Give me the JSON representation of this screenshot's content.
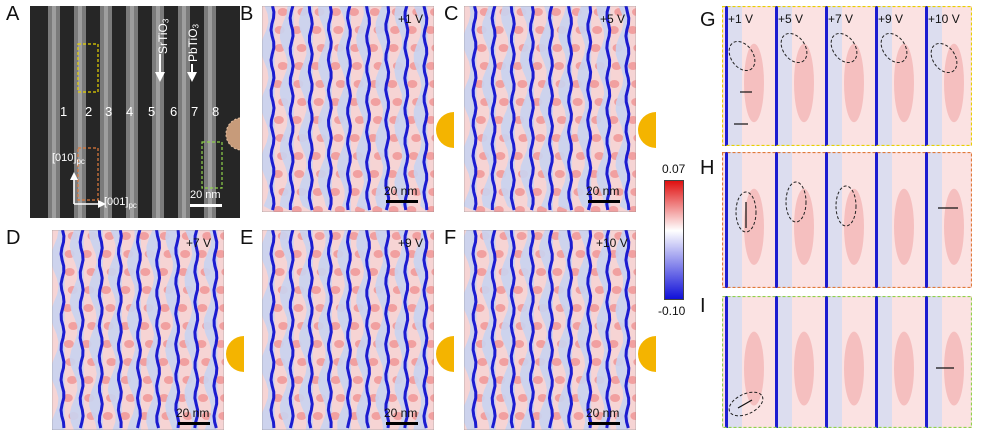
{
  "panels": {
    "A": {
      "letter": "A",
      "layer_numbers": [
        "1",
        "2",
        "3",
        "4",
        "5",
        "6",
        "7",
        "8"
      ],
      "label_sto": "SrTiO",
      "label_sto_sub": "3",
      "label_pto": "PbTiO",
      "label_pto_sub": "3",
      "axis_y": "[010]",
      "axis_y_sub": "pc",
      "axis_x": "[001]",
      "axis_x_sub": "pc",
      "scale": "20 nm"
    },
    "B": {
      "letter": "B",
      "voltage": "+1 V",
      "scale": "20 nm"
    },
    "C": {
      "letter": "C",
      "voltage": "+5 V",
      "scale": "20 nm"
    },
    "D": {
      "letter": "D",
      "voltage": "+7 V",
      "scale": "20 nm"
    },
    "E": {
      "letter": "E",
      "voltage": "+9 V",
      "scale": "20 nm"
    },
    "F": {
      "letter": "F",
      "voltage": "+10 V",
      "scale": "20 nm"
    },
    "G": {
      "letter": "G",
      "voltages": [
        "+1 V",
        "+5 V",
        "+7 V",
        "+9 V",
        "+10 V"
      ]
    },
    "H": {
      "letter": "H"
    },
    "I": {
      "letter": "I"
    }
  },
  "colorbar": {
    "max": "0.07",
    "min": "-0.10",
    "colors": [
      "#e01010",
      "#ffffff",
      "#1010d8"
    ]
  }
}
